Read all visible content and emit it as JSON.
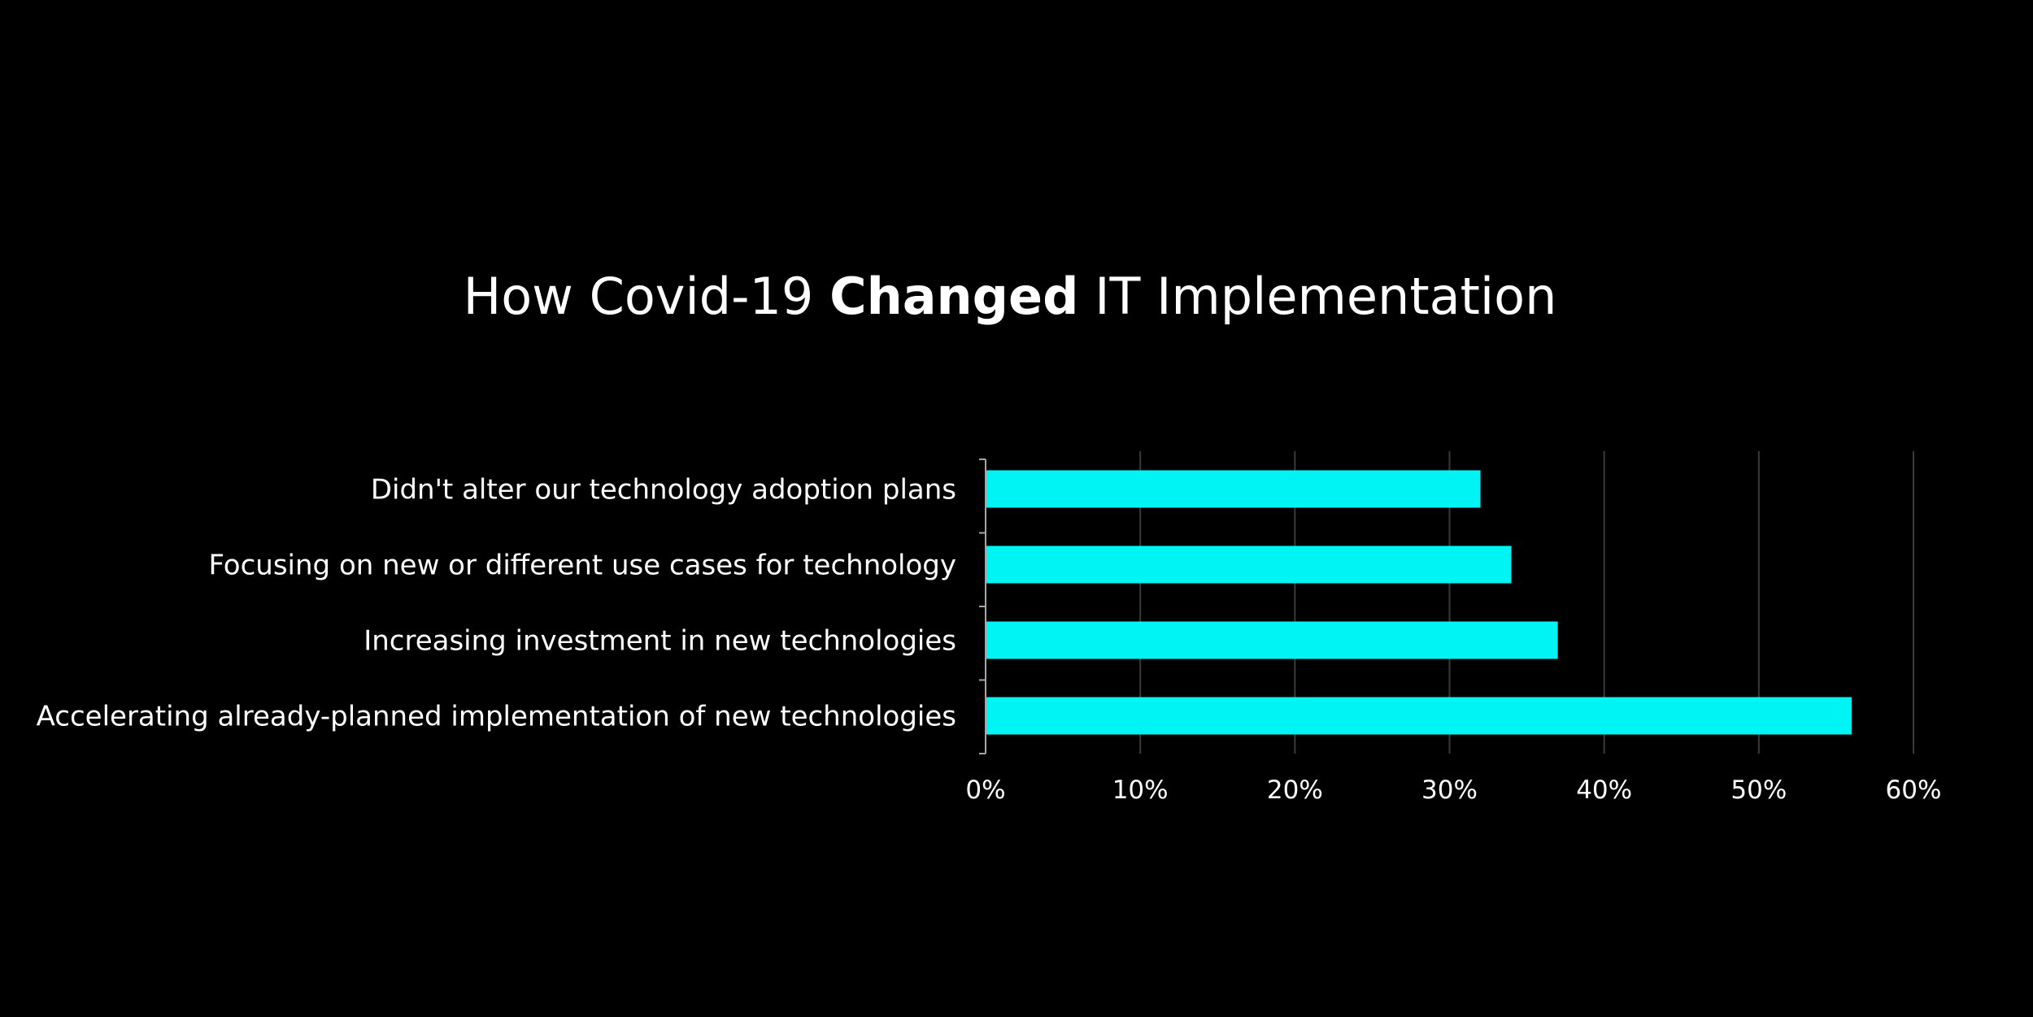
{
  "title": {
    "part1": "How Covid-19 ",
    "part2": "Changed",
    "part3": " IT Implementation"
  },
  "chart_data": {
    "type": "bar",
    "orientation": "horizontal",
    "categories": [
      "Didn't alter our technology adoption plans",
      "Focusing on new or different use cases for technology",
      "Increasing investment in new technologies",
      "Accelerating already-planned implementation of new technologies"
    ],
    "values": [
      32,
      34,
      37,
      56
    ],
    "xlim": [
      0,
      60
    ],
    "xticks": [
      0,
      10,
      20,
      30,
      40,
      50,
      60
    ],
    "xtick_labels": [
      "0%",
      "10%",
      "20%",
      "30%",
      "40%",
      "50%",
      "60%"
    ],
    "bar_color": "#00f4f4",
    "grid": true,
    "grid_color": "#3a3a3a",
    "axis_color": "#a6a6a6",
    "legend": "none"
  }
}
